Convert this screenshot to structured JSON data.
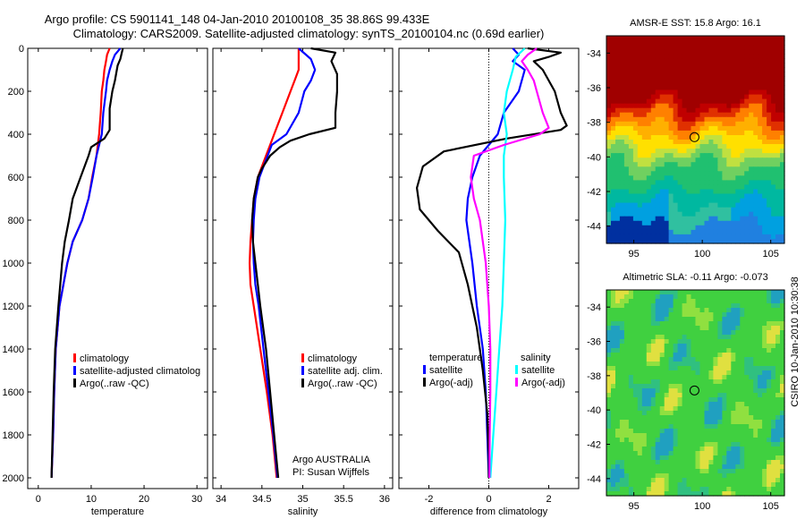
{
  "title": {
    "line1": "Argo profile: CS 5901141_148 04-Jan-2010 20100108_35 38.86S 99.433E",
    "line2": "Climatology: CARS2009. Satellite-adjusted climatology: synTS_20100104.nc (0.69d earlier)"
  },
  "footer_text": "CSIRO 10-Jan-2010 10:30:38",
  "y_ticks": [
    "0",
    "200",
    "400",
    "600",
    "800",
    "1000",
    "1200",
    "1400",
    "1600",
    "1800",
    "2000"
  ],
  "chart_data": [
    {
      "type": "line",
      "panel": "temperature",
      "xlabel": "temperature",
      "xlim": [
        -2,
        32
      ],
      "ylim": [
        0,
        2050
      ],
      "x_ticks": [
        "0",
        "10",
        "20",
        "30"
      ],
      "legend": [
        "climatology",
        "satellite-adjusted climatolog",
        "Argo(..raw -QC)"
      ],
      "series": [
        {
          "name": "climatology",
          "color": "#ff0000",
          "depth": [
            0,
            30,
            60,
            100,
            150,
            200,
            300,
            400,
            500,
            600,
            700,
            800,
            900,
            1000,
            1200,
            1400,
            1600,
            1800,
            2000
          ],
          "values": [
            13.5,
            13,
            12.8,
            12.5,
            12.3,
            12,
            11.8,
            11.5,
            11,
            10.2,
            9.5,
            8.3,
            6.5,
            5.5,
            4,
            3.3,
            3,
            2.8,
            2.5
          ]
        },
        {
          "name": "satellite-adjusted climatolog",
          "color": "#0000ff",
          "depth": [
            0,
            30,
            60,
            100,
            150,
            200,
            300,
            400,
            500,
            600,
            700,
            800,
            900,
            1000,
            1200,
            1400,
            1600,
            1800,
            2000
          ],
          "values": [
            15.5,
            14.5,
            14,
            13.5,
            13,
            12.8,
            12.3,
            12,
            11,
            10.3,
            9.5,
            8.3,
            6.5,
            5.5,
            4,
            3.3,
            3,
            2.8,
            2.5
          ]
        },
        {
          "name": "Argo(..raw -QC)",
          "color": "#000000",
          "depth": [
            0,
            20,
            50,
            80,
            150,
            200,
            280,
            380,
            420,
            460,
            500,
            600,
            700,
            800,
            900,
            1000,
            1200,
            1400,
            1600,
            1800,
            2000
          ],
          "values": [
            16,
            15.8,
            15.5,
            15,
            14.5,
            14,
            13.5,
            13.5,
            12.5,
            10,
            9.5,
            8,
            6.5,
            5.8,
            5,
            4.5,
            3.8,
            3.2,
            2.9,
            2.7,
            2.5
          ]
        }
      ]
    },
    {
      "type": "line",
      "panel": "salinity",
      "xlabel": "salinity",
      "xlim": [
        33.9,
        36.1
      ],
      "ylim": [
        0,
        2050
      ],
      "x_ticks": [
        "34",
        "34.5",
        "35",
        "35.5",
        "36"
      ],
      "legend": [
        "climatology",
        "satellite adj. clim.",
        "Argo(..raw -QC)"
      ],
      "annotations": [
        "Argo AUSTRALIA",
        "PI: Susan Wijffels"
      ],
      "series": [
        {
          "name": "climatology",
          "color": "#ff0000",
          "depth": [
            0,
            50,
            100,
            150,
            200,
            300,
            400,
            450,
            500,
            600,
            700,
            800,
            900,
            1000,
            1100,
            1200,
            1400,
            1600,
            1800,
            2000
          ],
          "values": [
            34.95,
            34.95,
            34.95,
            34.9,
            34.85,
            34.75,
            34.65,
            34.6,
            34.55,
            34.45,
            34.4,
            34.38,
            34.36,
            34.35,
            34.36,
            34.4,
            34.48,
            34.56,
            34.63,
            34.68
          ]
        },
        {
          "name": "satellite adj. clim.",
          "color": "#0000ff",
          "depth": [
            0,
            50,
            100,
            150,
            200,
            300,
            400,
            450,
            500,
            600,
            700,
            800,
            900,
            1000,
            1100,
            1200,
            1400,
            1600,
            1800,
            2000
          ],
          "values": [
            34.95,
            35.1,
            35.15,
            35.1,
            35.02,
            34.95,
            34.8,
            34.62,
            34.57,
            34.47,
            34.42,
            34.4,
            34.39,
            34.4,
            34.42,
            34.46,
            34.52,
            34.58,
            34.64,
            34.69
          ]
        },
        {
          "name": "Argo(..raw -QC)",
          "color": "#000000",
          "depth": [
            0,
            20,
            60,
            120,
            200,
            300,
            370,
            400,
            430,
            460,
            500,
            560,
            600,
            700,
            800,
            900,
            1000,
            1200,
            1400,
            1600,
            1800,
            2000
          ],
          "values": [
            35.1,
            35.4,
            35.35,
            35.42,
            35.42,
            35.4,
            35.4,
            35.08,
            34.85,
            34.72,
            34.6,
            34.5,
            34.45,
            34.4,
            34.38,
            34.39,
            34.42,
            34.48,
            34.55,
            34.6,
            34.65,
            34.7
          ]
        }
      ]
    },
    {
      "type": "line",
      "panel": "difference",
      "xlabel": "difference from climatology",
      "xlim": [
        -3,
        3
      ],
      "ylim": [
        0,
        2050
      ],
      "x_ticks": [
        "-2",
        "0",
        "2"
      ],
      "legend_groups": [
        "temperature",
        "salinity"
      ],
      "legend": [
        "satellite",
        "Argo(-adj)",
        "satellite",
        "Argo(-adj)"
      ],
      "series": [
        {
          "name": "temperature satellite",
          "color": "#0000ff",
          "depth": [
            0,
            30,
            60,
            100,
            200,
            300,
            400,
            500,
            600,
            700,
            800,
            1000,
            1200,
            1400,
            1600,
            1800,
            2000
          ],
          "values": [
            0.8,
            1,
            0.8,
            1.2,
            1.0,
            0.5,
            0.3,
            -0.3,
            -0.55,
            -0.7,
            -0.75,
            -0.55,
            -0.4,
            -0.2,
            -0.1,
            -0.05,
            0
          ]
        },
        {
          "name": "temperature Argo(-adj)",
          "color": "#000000",
          "depth": [
            0,
            20,
            40,
            60,
            100,
            200,
            300,
            360,
            380,
            420,
            480,
            550,
            650,
            750,
            850,
            950,
            1100,
            1300,
            1500,
            1700,
            1900,
            2000
          ],
          "values": [
            1.3,
            2.4,
            2.0,
            1.5,
            1.8,
            2.2,
            2.4,
            2.6,
            2.4,
            0.6,
            -1.5,
            -2.2,
            -2.4,
            -2.3,
            -1.7,
            -1.0,
            -0.7,
            -0.4,
            -0.2,
            -0.05,
            0,
            0
          ]
        },
        {
          "name": "salinity satellite",
          "color": "#00ffff",
          "depth": [
            0,
            40,
            100,
            200,
            300,
            400,
            500,
            600,
            800,
            1000,
            1200,
            1400,
            1600,
            1800,
            2000
          ],
          "values": [
            1.2,
            0.9,
            0.8,
            0.6,
            0.5,
            0.6,
            0.5,
            0.5,
            0.55,
            0.5,
            0.45,
            0.35,
            0.25,
            0.15,
            0.05
          ]
        },
        {
          "name": "salinity Argo(-adj)",
          "color": "#ff00ff",
          "depth": [
            0,
            30,
            60,
            100,
            150,
            200,
            300,
            370,
            400,
            450,
            500,
            600,
            700,
            800,
            900,
            1000,
            1200,
            1400,
            1600,
            1800,
            2000
          ],
          "values": [
            1.6,
            1.3,
            1.1,
            1.3,
            1.5,
            1.6,
            1.8,
            2.0,
            1.7,
            0.5,
            -0.5,
            -0.6,
            -0.5,
            -0.3,
            -0.2,
            -0.1,
            0.0,
            0.05,
            0.05,
            0.03,
            0.02
          ]
        }
      ]
    },
    {
      "type": "heatmap",
      "panel": "sst_map",
      "title": "AMSR-E SST: 15.8 Argo: 16.1",
      "xlim": [
        93,
        106
      ],
      "ylim": [
        -45,
        -33
      ],
      "x_ticks": [
        "95",
        "100",
        "105"
      ],
      "y_ticks": [
        "-34",
        "-36",
        "-38",
        "-40",
        "-42",
        "-44"
      ],
      "marker": {
        "lon": 99.43,
        "lat": -38.86
      }
    },
    {
      "type": "heatmap",
      "panel": "sla_map",
      "title": "Altimetric SLA: -0.11 Argo: -0.073",
      "xlim": [
        93,
        106
      ],
      "ylim": [
        -45,
        -33
      ],
      "x_ticks": [
        "95",
        "100",
        "105"
      ],
      "y_ticks": [
        "-34",
        "-36",
        "-38",
        "-40",
        "-42",
        "-44"
      ],
      "marker": {
        "lon": 99.43,
        "lat": -38.86
      }
    }
  ]
}
